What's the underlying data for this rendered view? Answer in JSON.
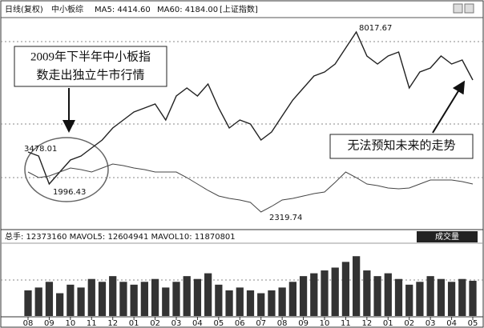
{
  "chart_data": [
    {
      "type": "line",
      "period": "日线(复权)",
      "ma_labels": [
        "MA5: 4414.60",
        "MA60: 4184.00"
      ],
      "ylim": [
        700,
        8500
      ],
      "y2lim": [
        2000,
        7000
      ],
      "series": [
        {
          "name": "中小板综",
          "color": "#222222",
          "values": [
            3475,
            3329,
            2307,
            2745,
            3183,
            3329,
            3621,
            3913,
            4351,
            4643,
            4935,
            5082,
            5228,
            4643,
            5520,
            5812,
            5520,
            5958,
            5082,
            4351,
            4643,
            4497,
            3913,
            4205,
            4789,
            5374,
            5812,
            6250,
            6396,
            6688,
            7272,
            7856,
            6980,
            6688,
            6980,
            7126,
            5812,
            6396,
            6542,
            6980,
            6688,
            6834,
            6104
          ]
        },
        {
          "name": "[上证指数]",
          "color": "#444444",
          "axis": "y2",
          "values": [
            3311,
            3180,
            3217,
            3311,
            3405,
            3367,
            3311,
            3405,
            3498,
            3461,
            3405,
            3367,
            3311,
            3311,
            3311,
            3180,
            3030,
            2880,
            2749,
            2693,
            2656,
            2599,
            2375,
            2506,
            2656,
            2693,
            2749,
            2805,
            2843,
            3068,
            3311,
            3180,
            3030,
            2993,
            2937,
            2918,
            2937,
            3030,
            3124,
            3124,
            3124,
            3086,
            3030
          ]
        }
      ],
      "price_labels": [
        "8017.67",
        "3478.01",
        "1996.43",
        "2319.74"
      ],
      "annotations": [
        [
          "2009年下半年中小板指",
          "数走出独立牛市行情"
        ],
        [
          "无法预知未来的走势"
        ]
      ]
    },
    {
      "type": "bar",
      "title": "成交量",
      "stats": "总手: 12373160 MAVOL5: 12604941 MAVOL10: 11870801",
      "color": "#333333",
      "ylim": [
        0,
        25000000
      ],
      "categories": [
        "08",
        null,
        "09",
        null,
        "10",
        null,
        "11",
        null,
        "12",
        null,
        "01",
        null,
        "02",
        null,
        "03",
        null,
        "04",
        null,
        "05",
        null,
        "06",
        null,
        "07",
        null,
        "08",
        null,
        "09",
        null,
        "10",
        null,
        "11",
        null,
        "12",
        null,
        "01",
        null,
        "02",
        null,
        "03",
        null,
        "04",
        null,
        "05"
      ],
      "values": [
        9000000,
        10000000,
        12000000,
        8000000,
        11000000,
        10000000,
        13000000,
        12000000,
        14000000,
        12000000,
        11000000,
        12000000,
        13000000,
        10000000,
        12000000,
        14000000,
        13000000,
        15000000,
        11000000,
        9000000,
        10000000,
        9000000,
        8000000,
        9000000,
        10000000,
        12000000,
        14000000,
        15000000,
        16000000,
        17000000,
        19000000,
        21000000,
        16000000,
        14000000,
        15000000,
        13000000,
        11000000,
        12000000,
        14000000,
        13000000,
        12000000,
        13000000,
        12373160
      ]
    }
  ]
}
